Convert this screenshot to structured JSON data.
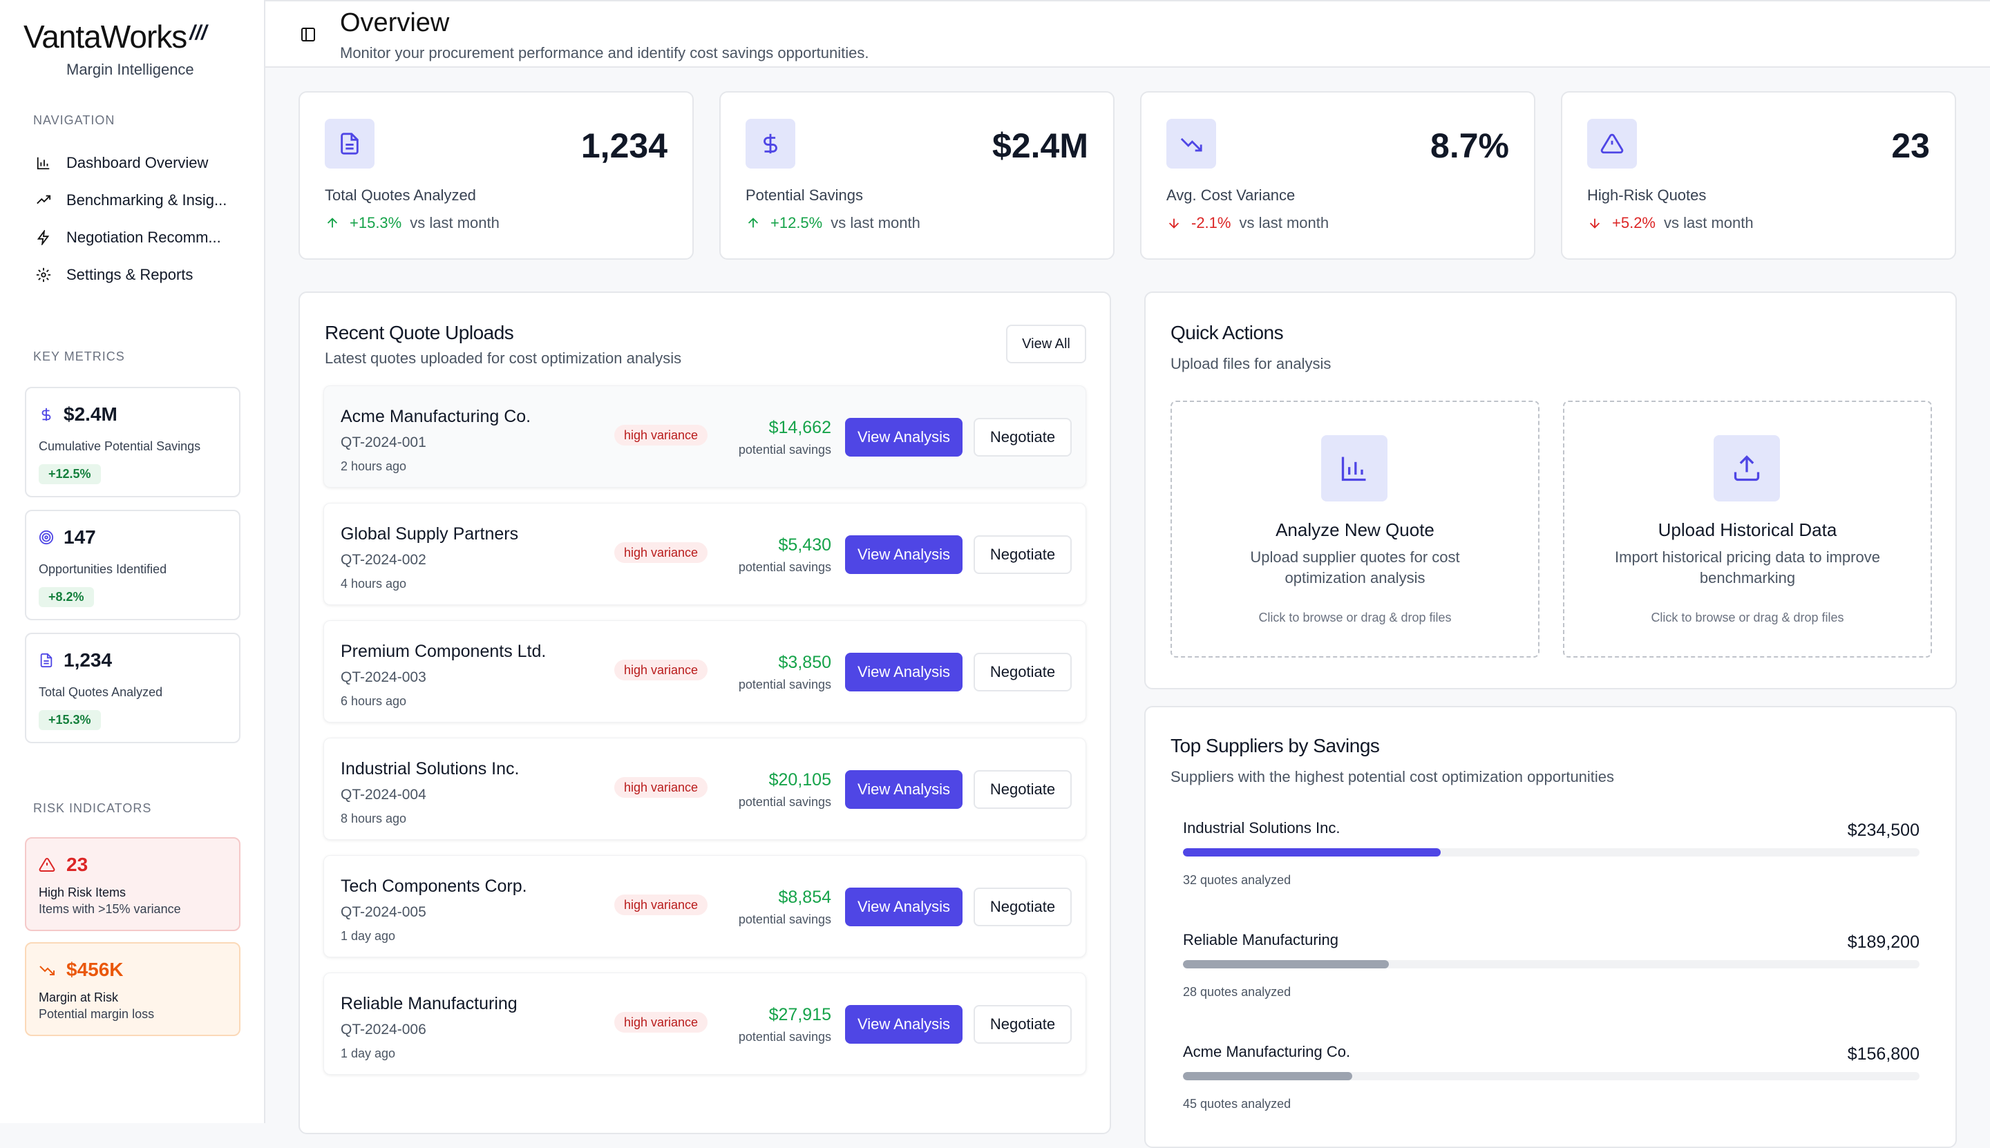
{
  "brand": {
    "name": "VantaWorks",
    "mark": "///",
    "tagline": "Margin Intelligence"
  },
  "sidebar": {
    "nav_label": "NAVIGATION",
    "nav": [
      {
        "label": "Dashboard Overview",
        "icon": "bar-chart-icon"
      },
      {
        "label": "Benchmarking & Insig...",
        "icon": "trending-up-icon"
      },
      {
        "label": "Negotiation Recomm...",
        "icon": "lightning-icon"
      },
      {
        "label": "Settings & Reports",
        "icon": "gear-icon"
      }
    ],
    "metrics_label": "KEY METRICS",
    "metrics": [
      {
        "value": "$2.4M",
        "label": "Cumulative Potential Savings",
        "badge": "+12.5%",
        "icon": "dollar-icon"
      },
      {
        "value": "147",
        "label": "Opportunities Identified",
        "badge": "+8.2%",
        "icon": "target-icon"
      },
      {
        "value": "1,234",
        "label": "Total Quotes Analyzed",
        "badge": "+15.3%",
        "icon": "document-icon"
      }
    ],
    "risk_label": "RISK INDICATORS",
    "risks": [
      {
        "value": "23",
        "title": "High Risk Items",
        "sub": "Items with >15% variance",
        "color": "#dc2626",
        "bg": "#fdf0f0",
        "border": "#f5c9c9",
        "icon": "warning-icon"
      },
      {
        "value": "$456K",
        "title": "Margin at Risk",
        "sub": "Potential margin loss",
        "color": "#ea580c",
        "bg": "#fff5eb",
        "border": "#fbd9b8",
        "icon": "trending-down-icon"
      }
    ]
  },
  "header": {
    "title": "Overview",
    "subtitle": "Monitor your procurement performance and identify cost savings opportunities."
  },
  "stats": [
    {
      "value": "1,234",
      "label": "Total Quotes Analyzed",
      "change": "+15.3%",
      "direction": "up",
      "vs": "vs last month",
      "icon": "document-icon"
    },
    {
      "value": "$2.4M",
      "label": "Potential Savings",
      "change": "+12.5%",
      "direction": "up",
      "vs": "vs last month",
      "icon": "dollar-icon"
    },
    {
      "value": "8.7%",
      "label": "Avg. Cost Variance",
      "change": "-2.1%",
      "direction": "down",
      "vs": "vs last month",
      "icon": "trending-down-icon"
    },
    {
      "value": "23",
      "label": "High-Risk Quotes",
      "change": "+5.2%",
      "direction": "down",
      "vs": "vs last month",
      "icon": "warning-icon"
    }
  ],
  "colors": {
    "accent": "#4f46e5",
    "positive": "#16a34a",
    "negative": "#dc2626"
  },
  "recent": {
    "title": "Recent Quote Uploads",
    "subtitle": "Latest quotes uploaded for cost optimization analysis",
    "view_all": "View All",
    "analysis_label": "View Analysis",
    "negotiate_label": "Negotiate",
    "savings_label": "potential savings",
    "quotes": [
      {
        "name": "Acme Manufacturing Co.",
        "id": "QT-2024-001",
        "time": "2 hours ago",
        "badge": "high variance",
        "amount": "$14,662"
      },
      {
        "name": "Global Supply Partners",
        "id": "QT-2024-002",
        "time": "4 hours ago",
        "badge": "high variance",
        "amount": "$5,430"
      },
      {
        "name": "Premium Components Ltd.",
        "id": "QT-2024-003",
        "time": "6 hours ago",
        "badge": "high variance",
        "amount": "$3,850"
      },
      {
        "name": "Industrial Solutions Inc.",
        "id": "QT-2024-004",
        "time": "8 hours ago",
        "badge": "high variance",
        "amount": "$20,105"
      },
      {
        "name": "Tech Components Corp.",
        "id": "QT-2024-005",
        "time": "1 day ago",
        "badge": "high variance",
        "amount": "$8,854"
      },
      {
        "name": "Reliable Manufacturing",
        "id": "QT-2024-006",
        "time": "1 day ago",
        "badge": "high variance",
        "amount": "$27,915"
      }
    ]
  },
  "quick": {
    "title": "Quick Actions",
    "subtitle": "Upload files for analysis",
    "actions": [
      {
        "title": "Analyze New Quote",
        "desc": "Upload supplier quotes for cost optimization analysis",
        "hint": "Click to browse or drag & drop files",
        "icon": "bar-chart-icon"
      },
      {
        "title": "Upload Historical Data",
        "desc": "Import historical pricing data to improve benchmarking",
        "hint": "Click to browse or drag & drop files",
        "icon": "upload-icon"
      }
    ]
  },
  "suppliers": {
    "title": "Top Suppliers by Savings",
    "subtitle": "Suppliers with the highest potential cost optimization opportunities",
    "items": [
      {
        "name": "Industrial Solutions Inc.",
        "amount": "$234,500",
        "quotes": "32 quotes analyzed",
        "share": 0.35,
        "color": "#4f46e5"
      },
      {
        "name": "Reliable Manufacturing",
        "amount": "$189,200",
        "quotes": "28 quotes analyzed",
        "share": 0.28,
        "color": "#9ca3af"
      },
      {
        "name": "Acme Manufacturing Co.",
        "amount": "$156,800",
        "quotes": "45 quotes analyzed",
        "share": 0.23,
        "color": "#9ca3af"
      }
    ]
  }
}
